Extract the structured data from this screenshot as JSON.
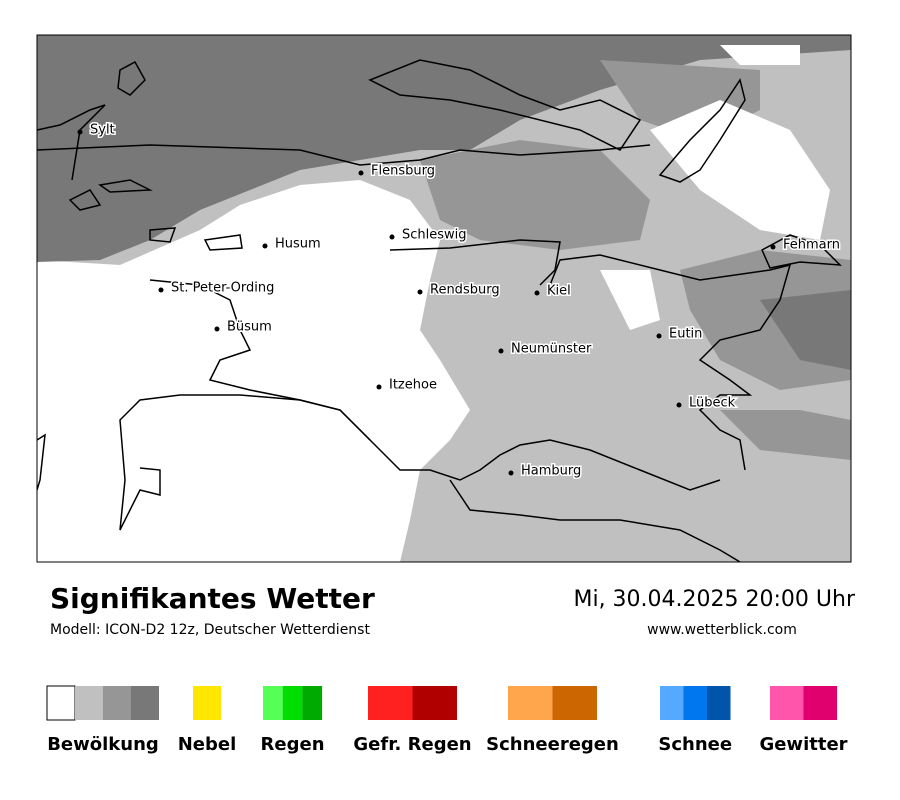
{
  "map": {
    "cities": [
      "Sylt",
      "Flensburg",
      "Schleswig",
      "Husum",
      "St. Peter-Ording",
      "Rendsburg",
      "Kiel",
      "Büsum",
      "Neumünster",
      "Eutin",
      "Itzehoe",
      "Lübeck",
      "Fehmarn",
      "Hamburg"
    ]
  },
  "footer": {
    "title": "Signifikantes Wetter",
    "model": "Modell: ICON-D2 12z, Deutscher Wetterdienst",
    "datetime": "Mi, 30.04.2025 20:00 Uhr",
    "website": "www.wetterblick.com"
  },
  "legend": [
    {
      "label": "Bewölkung",
      "colors": [
        "#ffffff",
        "#c0c0c0",
        "#969696",
        "#787878"
      ]
    },
    {
      "label": "Nebel",
      "colors": [
        "#ffe600"
      ]
    },
    {
      "label": "Regen",
      "colors": [
        "#55ff55",
        "#00dd00",
        "#00aa00"
      ]
    },
    {
      "label": "Gefr. Regen",
      "colors": [
        "#ff2020",
        "#b00000"
      ]
    },
    {
      "label": "Schneeregen",
      "colors": [
        "#ffa64d",
        "#cc6600"
      ]
    },
    {
      "label": "Schnee",
      "colors": [
        "#55aaff",
        "#0077ee",
        "#0055aa"
      ]
    },
    {
      "label": "Gewitter",
      "colors": [
        "#ff55aa",
        "#e0006e"
      ]
    }
  ]
}
